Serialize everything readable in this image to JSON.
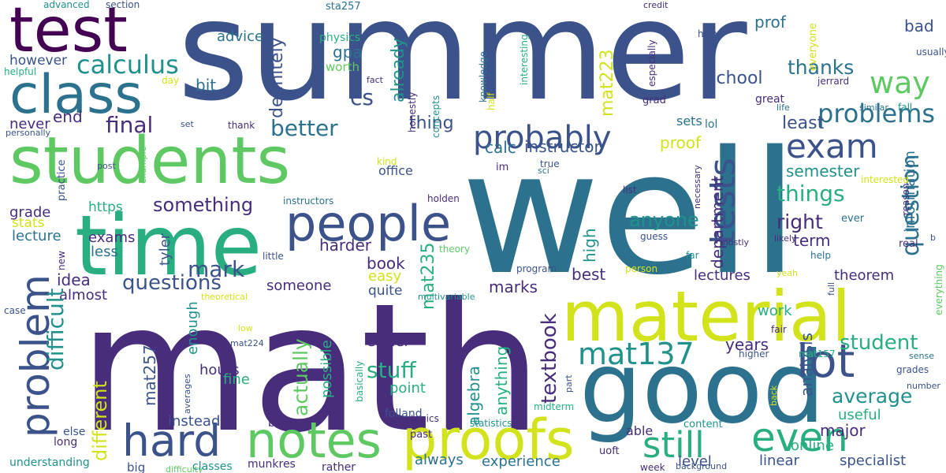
{
  "palette": {
    "c1": "#440154",
    "c2": "#472d7b",
    "c3": "#3b528b",
    "c4": "#2c728e",
    "c5": "#21918c",
    "c6": "#28ae80",
    "c7": "#5ec962",
    "c8": "#addc30",
    "c9": "#d2e21b"
  },
  "words": [
    "summer",
    "well",
    "math",
    "test",
    "students",
    "time",
    "good",
    "material",
    "class",
    "people",
    "probably",
    "proofs",
    "notes",
    "hard",
    "problem",
    "lot",
    "exam",
    "even",
    "tests",
    "calculus",
    "way",
    "still",
    "mat137",
    "cs",
    "thanks",
    "school",
    "advice",
    "gpa",
    "sta257",
    "physics",
    "worth",
    "prof",
    "bad",
    "usually",
    "advanced",
    "section",
    "credit",
    "already",
    "definitely",
    "problems",
    "final",
    "better",
    "thing",
    "mat223",
    "bit",
    "however",
    "helpful",
    "day",
    "knowledge",
    "interesting",
    "concepts",
    "half",
    "honestly",
    "fact",
    "http",
    "especially",
    "everyone",
    "grad",
    "great",
    "life",
    "jerrard",
    "similar",
    "fall",
    "end",
    "never",
    "personally",
    "set",
    "thank",
    "sets",
    "lol",
    "least",
    "things",
    "department",
    "question",
    "semester",
    "information",
    "reason",
    "interested",
    "something",
    "right",
    "anyone",
    "term",
    "ever",
    "proof",
    "calc",
    "instructor",
    "office",
    "kind",
    "true",
    "sci",
    "im",
    "post",
    "example",
    "practice",
    "https",
    "stats",
    "grade",
    "lecture",
    "exams",
    "less",
    "tyler",
    "mark",
    "harder",
    "book",
    "student",
    "average",
    "questions",
    "someone",
    "easy",
    "mat235",
    "marks",
    "idea",
    "almost",
    "difficult",
    "different",
    "textbook",
    "stuff",
    "actually",
    "high",
    "best",
    "theorem",
    "lectures",
    "list",
    "guess",
    "mostly",
    "likely",
    "real",
    "help",
    "far",
    "necessary",
    "holden",
    "instructors",
    "little",
    "new",
    "enough",
    "hours",
    "mat257",
    "theory",
    "person",
    "yeah",
    "theoretical",
    "multivariable",
    "program",
    "quite",
    "easier",
    "possible",
    "basically",
    "folland",
    "point",
    "algebra",
    "anything",
    "analysis",
    "years",
    "work",
    "fine",
    "instead",
    "averages",
    "case",
    "low",
    "mat224",
    "part",
    "midterm",
    "higher",
    "mat157",
    "fair",
    "full",
    "everything",
    "grades",
    "sense",
    "number",
    "b",
    "useful",
    "major",
    "online",
    "specialist",
    "linear",
    "level",
    "experience",
    "able",
    "uoft",
    "content",
    "background",
    "week",
    "back",
    "always",
    "past",
    "topics",
    "statistics",
    "rather",
    "munkres",
    "difficulty",
    "classes",
    "big",
    "understanding",
    "long",
    "else",
    "basic"
  ]
}
